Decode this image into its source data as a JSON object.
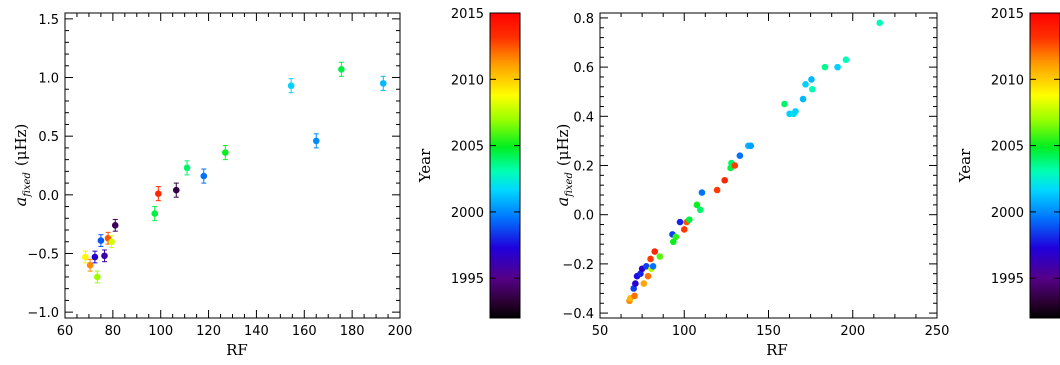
{
  "chart_data": [
    {
      "type": "scatter",
      "xlabel": "RF",
      "ylabel_main": "a",
      "ylabel_sub": "fixed",
      "ylabel_unit": "(μHz)",
      "xlim": [
        60,
        200
      ],
      "ylim": [
        -1.05,
        1.55
      ],
      "xticks": [
        60,
        80,
        100,
        120,
        140,
        160,
        180,
        200
      ],
      "yticks": [
        -1.0,
        -0.5,
        0.0,
        0.5,
        1.0,
        1.5
      ],
      "ytick_labels": [
        "−1.0",
        "−0.5",
        "0.0",
        "0.5",
        "1.0",
        "1.5"
      ],
      "points": [
        {
          "x": 68.5,
          "y": -0.53,
          "err": 0.05,
          "year": 2009.0
        },
        {
          "x": 70.5,
          "y": -0.6,
          "err": 0.05,
          "year": 2011.5
        },
        {
          "x": 72.5,
          "y": -0.53,
          "err": 0.05,
          "year": 1997.0
        },
        {
          "x": 73.5,
          "y": -0.7,
          "err": 0.05,
          "year": 2007.0
        },
        {
          "x": 75.0,
          "y": -0.39,
          "err": 0.05,
          "year": 1999.0
        },
        {
          "x": 76.5,
          "y": -0.52,
          "err": 0.05,
          "year": 1996.0
        },
        {
          "x": 78.0,
          "y": -0.37,
          "err": 0.05,
          "year": 2012.5
        },
        {
          "x": 79.5,
          "y": -0.4,
          "err": 0.05,
          "year": 2008.0
        },
        {
          "x": 81.0,
          "y": -0.26,
          "err": 0.05,
          "year": 1994.0
        },
        {
          "x": 97.5,
          "y": -0.16,
          "err": 0.06,
          "year": 2004.5
        },
        {
          "x": 99.0,
          "y": 0.01,
          "err": 0.06,
          "year": 2013.5
        },
        {
          "x": 106.5,
          "y": 0.04,
          "err": 0.06,
          "year": 1993.5
        },
        {
          "x": 111.0,
          "y": 0.23,
          "err": 0.06,
          "year": 2004.0
        },
        {
          "x": 118.0,
          "y": 0.16,
          "err": 0.06,
          "year": 1999.5
        },
        {
          "x": 127.0,
          "y": 0.36,
          "err": 0.06,
          "year": 2005.0
        },
        {
          "x": 154.5,
          "y": 0.93,
          "err": 0.06,
          "year": 2001.5
        },
        {
          "x": 165.0,
          "y": 0.46,
          "err": 0.06,
          "year": 2000.0
        },
        {
          "x": 175.5,
          "y": 1.07,
          "err": 0.06,
          "year": 2004.5
        },
        {
          "x": 193.0,
          "y": 0.95,
          "err": 0.06,
          "year": 2001.0
        }
      ],
      "colorbar": {
        "label": "Year",
        "range": [
          1992,
          2015
        ],
        "ticks": [
          1995,
          2000,
          2005,
          2010,
          2015
        ]
      }
    },
    {
      "type": "scatter",
      "xlabel": "RF",
      "ylabel_main": "a",
      "ylabel_sub": "fixed",
      "ylabel_unit": "(μHz)",
      "xlim": [
        50,
        250
      ],
      "ylim": [
        -0.42,
        0.82
      ],
      "xticks": [
        50,
        100,
        150,
        200,
        250
      ],
      "yticks": [
        -0.4,
        -0.2,
        0.0,
        0.2,
        0.4,
        0.6,
        0.8
      ],
      "ytick_labels": [
        "−0.4",
        "−0.2",
        "0.0",
        "0.2",
        "0.4",
        "0.6",
        "0.8"
      ],
      "points": [
        {
          "x": 67.5,
          "y": -0.35,
          "year": 2011.5
        },
        {
          "x": 68.0,
          "y": -0.34,
          "year": 2010.5
        },
        {
          "x": 70.5,
          "y": -0.33,
          "year": 2012.0
        },
        {
          "x": 70.0,
          "y": -0.3,
          "year": 1998.5
        },
        {
          "x": 71.0,
          "y": -0.28,
          "year": 1997.0
        },
        {
          "x": 72.0,
          "y": -0.25,
          "year": 1997.5
        },
        {
          "x": 74.0,
          "y": -0.24,
          "year": 1998.0
        },
        {
          "x": 75.0,
          "y": -0.22,
          "year": 1997.0
        },
        {
          "x": 76.0,
          "y": -0.28,
          "year": 2011.0
        },
        {
          "x": 77.5,
          "y": -0.21,
          "year": 1998.5
        },
        {
          "x": 78.5,
          "y": -0.25,
          "year": 2012.0
        },
        {
          "x": 80.0,
          "y": -0.18,
          "year": 2013.0
        },
        {
          "x": 80.5,
          "y": -0.22,
          "year": 2007.5
        },
        {
          "x": 81.5,
          "y": -0.21,
          "year": 1999.5
        },
        {
          "x": 82.5,
          "y": -0.15,
          "year": 2013.5
        },
        {
          "x": 85.5,
          "y": -0.17,
          "year": 2006.0
        },
        {
          "x": 93.0,
          "y": -0.08,
          "year": 1998.5
        },
        {
          "x": 93.5,
          "y": -0.11,
          "year": 2005.0
        },
        {
          "x": 95.0,
          "y": -0.09,
          "year": 2005.5
        },
        {
          "x": 97.5,
          "y": -0.03,
          "year": 1998.0
        },
        {
          "x": 100.0,
          "y": -0.06,
          "year": 2013.0
        },
        {
          "x": 101.5,
          "y": -0.03,
          "year": 2012.5
        },
        {
          "x": 103.0,
          "y": -0.02,
          "year": 2004.5
        },
        {
          "x": 107.5,
          "y": 0.04,
          "year": 2005.0
        },
        {
          "x": 109.5,
          "y": 0.02,
          "year": 2004.0
        },
        {
          "x": 110.5,
          "y": 0.09,
          "year": 1999.5
        },
        {
          "x": 119.5,
          "y": 0.1,
          "year": 2013.0
        },
        {
          "x": 124.0,
          "y": 0.14,
          "year": 2013.5
        },
        {
          "x": 127.5,
          "y": 0.19,
          "year": 2004.5
        },
        {
          "x": 128.0,
          "y": 0.21,
          "year": 2004.0
        },
        {
          "x": 130.0,
          "y": 0.2,
          "year": 2013.0
        },
        {
          "x": 133.0,
          "y": 0.24,
          "year": 1999.5
        },
        {
          "x": 138.0,
          "y": 0.28,
          "year": 2001.0
        },
        {
          "x": 139.5,
          "y": 0.28,
          "year": 2000.5
        },
        {
          "x": 159.5,
          "y": 0.45,
          "year": 2004.0
        },
        {
          "x": 162.5,
          "y": 0.41,
          "year": 2001.5
        },
        {
          "x": 165.0,
          "y": 0.41,
          "year": 2002.0
        },
        {
          "x": 166.0,
          "y": 0.42,
          "year": 2001.5
        },
        {
          "x": 170.5,
          "y": 0.47,
          "year": 2001.0
        },
        {
          "x": 172.0,
          "y": 0.53,
          "year": 2001.5
        },
        {
          "x": 176.0,
          "y": 0.51,
          "year": 2003.0
        },
        {
          "x": 175.5,
          "y": 0.55,
          "year": 2001.0
        },
        {
          "x": 183.5,
          "y": 0.6,
          "year": 2003.5
        },
        {
          "x": 191.0,
          "y": 0.6,
          "year": 2001.5
        },
        {
          "x": 196.0,
          "y": 0.63,
          "year": 2003.0
        },
        {
          "x": 216.0,
          "y": 0.78,
          "year": 2003.0
        }
      ],
      "colorbar": {
        "label": "Year",
        "range": [
          1992,
          2015
        ],
        "ticks": [
          1995,
          2000,
          2005,
          2010,
          2015
        ]
      }
    }
  ]
}
